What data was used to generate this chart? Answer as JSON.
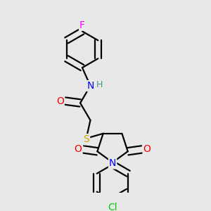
{
  "bg_color": "#e8e8e8",
  "atom_colors": {
    "C": "#000000",
    "N": "#0000ff",
    "O": "#ff0000",
    "S": "#ccaa00",
    "F": "#ff00ff",
    "Cl": "#00cc00",
    "H": "#4a9090"
  },
  "font_size": 10,
  "line_width": 1.6
}
